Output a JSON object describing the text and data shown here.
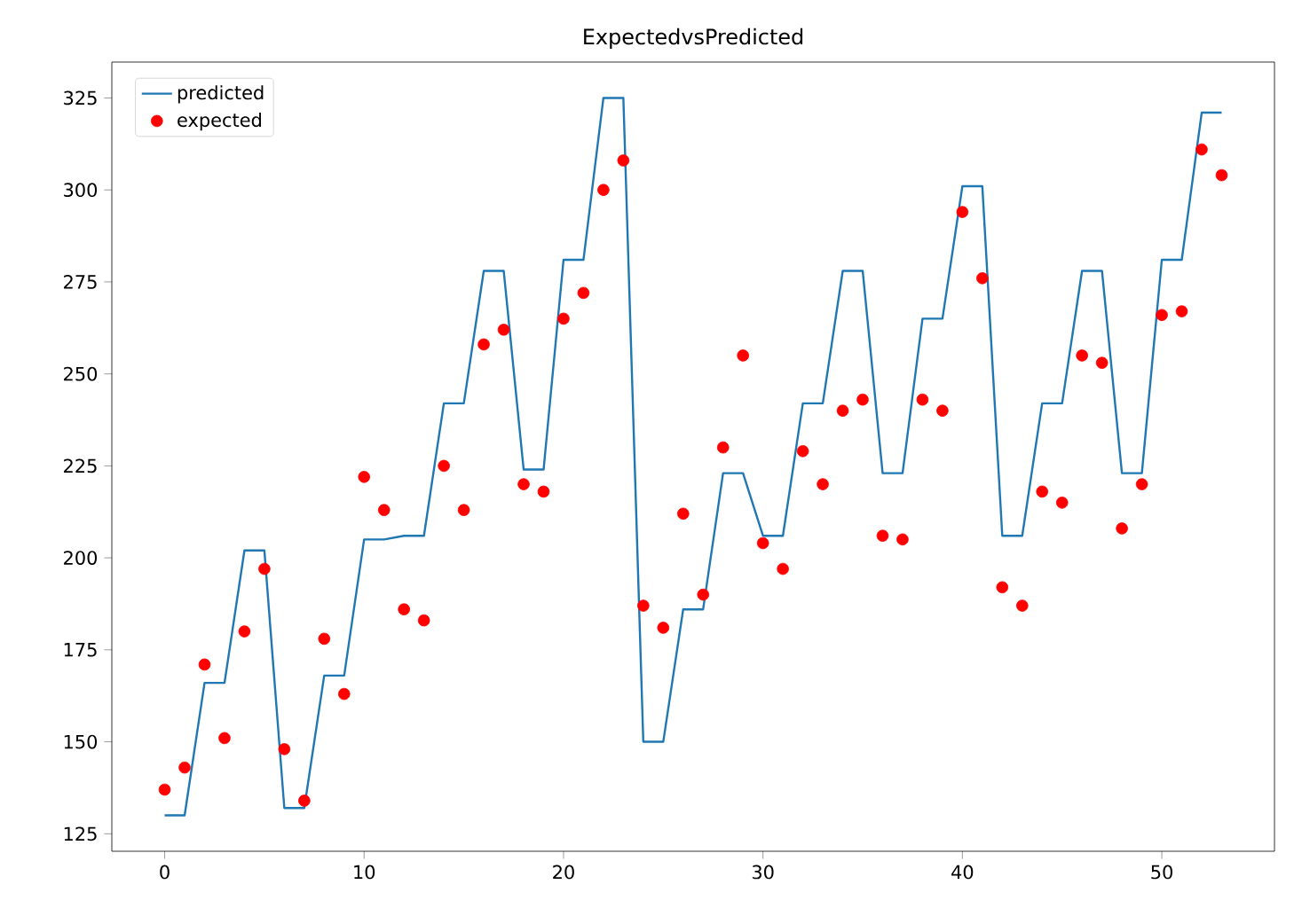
{
  "chart_data": {
    "type": "line",
    "title": "ExpectedvsPredicted",
    "x": [
      0,
      1,
      2,
      3,
      4,
      5,
      6,
      7,
      8,
      9,
      10,
      11,
      12,
      13,
      14,
      15,
      16,
      17,
      18,
      19,
      20,
      21,
      22,
      23,
      24,
      25,
      26,
      27,
      28,
      29,
      30,
      31,
      32,
      33,
      34,
      35,
      36,
      37,
      38,
      39,
      40,
      41,
      42,
      43,
      44,
      45,
      46,
      47,
      48,
      49,
      50,
      51,
      52,
      53
    ],
    "series": [
      {
        "name": "predicted",
        "color": "#1f77b4",
        "marker": "none",
        "values": [
          130,
          130,
          166,
          166,
          202,
          202,
          132,
          132,
          168,
          168,
          205,
          205,
          206,
          206,
          242,
          242,
          278,
          278,
          224,
          224,
          281,
          281,
          325,
          325,
          150,
          150,
          186,
          186,
          223,
          223,
          206,
          206,
          242,
          242,
          278,
          278,
          223,
          223,
          265,
          265,
          301,
          301,
          206,
          206,
          242,
          242,
          278,
          278,
          223,
          223,
          281,
          281,
          321,
          321
        ]
      },
      {
        "name": "expected",
        "type": "scatter",
        "color": "#ff0000",
        "marker": "circle",
        "values": [
          137,
          143,
          171,
          151,
          180,
          197,
          148,
          134,
          178,
          163,
          222,
          213,
          186,
          183,
          225,
          213,
          258,
          262,
          220,
          218,
          265,
          272,
          300,
          308,
          187,
          181,
          212,
          190,
          230,
          255,
          204,
          197,
          229,
          220,
          240,
          243,
          206,
          205,
          243,
          240,
          294,
          276,
          192,
          187,
          218,
          215,
          255,
          253,
          208,
          220,
          266,
          267,
          311,
          304
        ]
      }
    ],
    "xlim": [
      -2.65,
      55.65
    ],
    "ylim": [
      120.25,
      334.75
    ],
    "xticks": [
      0,
      10,
      20,
      30,
      40,
      50
    ],
    "yticks": [
      125,
      150,
      175,
      200,
      225,
      250,
      275,
      300,
      325
    ],
    "grid": false,
    "legend": "top left"
  }
}
